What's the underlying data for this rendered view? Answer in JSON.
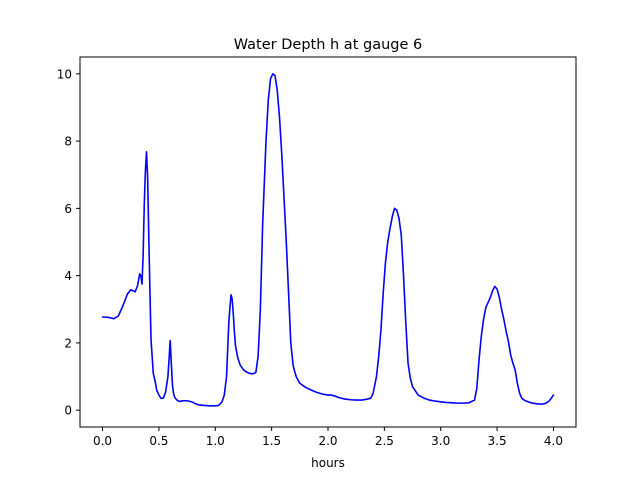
{
  "chart_data": {
    "type": "line",
    "title": "Water Depth h at gauge 6",
    "xlabel": "hours",
    "ylabel": "",
    "xlim": [
      -0.2,
      4.2
    ],
    "ylim": [
      -0.5,
      10.5
    ],
    "x_ticks": [
      0.0,
      0.5,
      1.0,
      1.5,
      2.0,
      2.5,
      3.0,
      3.5,
      4.0
    ],
    "x_tick_labels": [
      "0.0",
      "0.5",
      "1.0",
      "1.5",
      "2.0",
      "2.5",
      "3.0",
      "3.5",
      "4.0"
    ],
    "y_ticks": [
      0,
      2,
      4,
      6,
      8,
      10
    ],
    "y_tick_labels": [
      "0",
      "2",
      "4",
      "6",
      "8",
      "10"
    ],
    "grid": false,
    "series": [
      {
        "color": "#0000ff",
        "x": [
          0.0,
          0.05,
          0.1,
          0.14,
          0.18,
          0.22,
          0.25,
          0.27,
          0.29,
          0.31,
          0.33,
          0.34,
          0.35,
          0.36,
          0.37,
          0.38,
          0.39,
          0.4,
          0.41,
          0.42,
          0.43,
          0.45,
          0.47,
          0.48,
          0.5,
          0.52,
          0.54,
          0.56,
          0.58,
          0.59,
          0.6,
          0.61,
          0.62,
          0.63,
          0.64,
          0.66,
          0.68,
          0.7,
          0.72,
          0.75,
          0.79,
          0.82,
          0.85,
          0.9,
          0.95,
          1.0,
          1.03,
          1.06,
          1.08,
          1.1,
          1.11,
          1.12,
          1.13,
          1.14,
          1.15,
          1.16,
          1.17,
          1.18,
          1.2,
          1.22,
          1.25,
          1.28,
          1.3,
          1.33,
          1.36,
          1.38,
          1.4,
          1.42,
          1.45,
          1.47,
          1.49,
          1.51,
          1.53,
          1.55,
          1.57,
          1.59,
          1.61,
          1.63,
          1.65,
          1.67,
          1.69,
          1.7,
          1.72,
          1.75,
          1.8,
          1.85,
          1.9,
          1.95,
          2.0,
          2.03,
          2.06,
          2.1,
          2.15,
          2.2,
          2.25,
          2.3,
          2.35,
          2.38,
          2.4,
          2.43,
          2.45,
          2.47,
          2.49,
          2.51,
          2.53,
          2.55,
          2.57,
          2.59,
          2.61,
          2.63,
          2.65,
          2.67,
          2.69,
          2.71,
          2.73,
          2.75,
          2.8,
          2.85,
          2.9,
          2.95,
          3.0,
          3.05,
          3.1,
          3.15,
          3.2,
          3.25,
          3.3,
          3.32,
          3.34,
          3.36,
          3.38,
          3.4,
          3.42,
          3.44,
          3.46,
          3.48,
          3.5,
          3.52,
          3.54,
          3.56,
          3.58,
          3.6,
          3.62,
          3.64,
          3.66,
          3.68,
          3.7,
          3.72,
          3.75,
          3.8,
          3.85,
          3.9,
          3.93,
          3.96,
          3.98,
          4.0
        ],
        "y": [
          2.77,
          2.76,
          2.72,
          2.8,
          3.1,
          3.45,
          3.58,
          3.55,
          3.52,
          3.7,
          4.05,
          4.0,
          3.75,
          4.6,
          6.1,
          7.1,
          7.68,
          6.9,
          5.2,
          3.6,
          2.1,
          1.1,
          0.8,
          0.6,
          0.45,
          0.35,
          0.36,
          0.55,
          1.0,
          1.5,
          2.07,
          1.4,
          0.75,
          0.5,
          0.38,
          0.3,
          0.26,
          0.27,
          0.28,
          0.28,
          0.25,
          0.2,
          0.16,
          0.14,
          0.13,
          0.13,
          0.14,
          0.25,
          0.45,
          1.0,
          1.8,
          2.6,
          3.05,
          3.43,
          3.3,
          2.85,
          2.3,
          1.9,
          1.55,
          1.35,
          1.2,
          1.13,
          1.1,
          1.08,
          1.12,
          1.6,
          3.0,
          5.5,
          8.0,
          9.2,
          9.85,
          10.0,
          9.95,
          9.5,
          8.7,
          7.6,
          6.3,
          5.0,
          3.5,
          2.0,
          1.35,
          1.2,
          0.98,
          0.8,
          0.68,
          0.6,
          0.53,
          0.48,
          0.45,
          0.45,
          0.42,
          0.37,
          0.33,
          0.31,
          0.3,
          0.3,
          0.33,
          0.36,
          0.5,
          1.0,
          1.6,
          2.4,
          3.5,
          4.4,
          5.0,
          5.4,
          5.75,
          6.0,
          5.95,
          5.7,
          5.2,
          4.0,
          2.6,
          1.4,
          0.95,
          0.7,
          0.45,
          0.36,
          0.3,
          0.27,
          0.25,
          0.23,
          0.22,
          0.21,
          0.21,
          0.22,
          0.3,
          0.65,
          1.5,
          2.2,
          2.7,
          3.05,
          3.2,
          3.35,
          3.55,
          3.68,
          3.6,
          3.35,
          3.0,
          2.7,
          2.35,
          2.05,
          1.65,
          1.4,
          1.2,
          0.8,
          0.5,
          0.35,
          0.28,
          0.22,
          0.19,
          0.18,
          0.2,
          0.27,
          0.35,
          0.45
        ]
      }
    ]
  }
}
